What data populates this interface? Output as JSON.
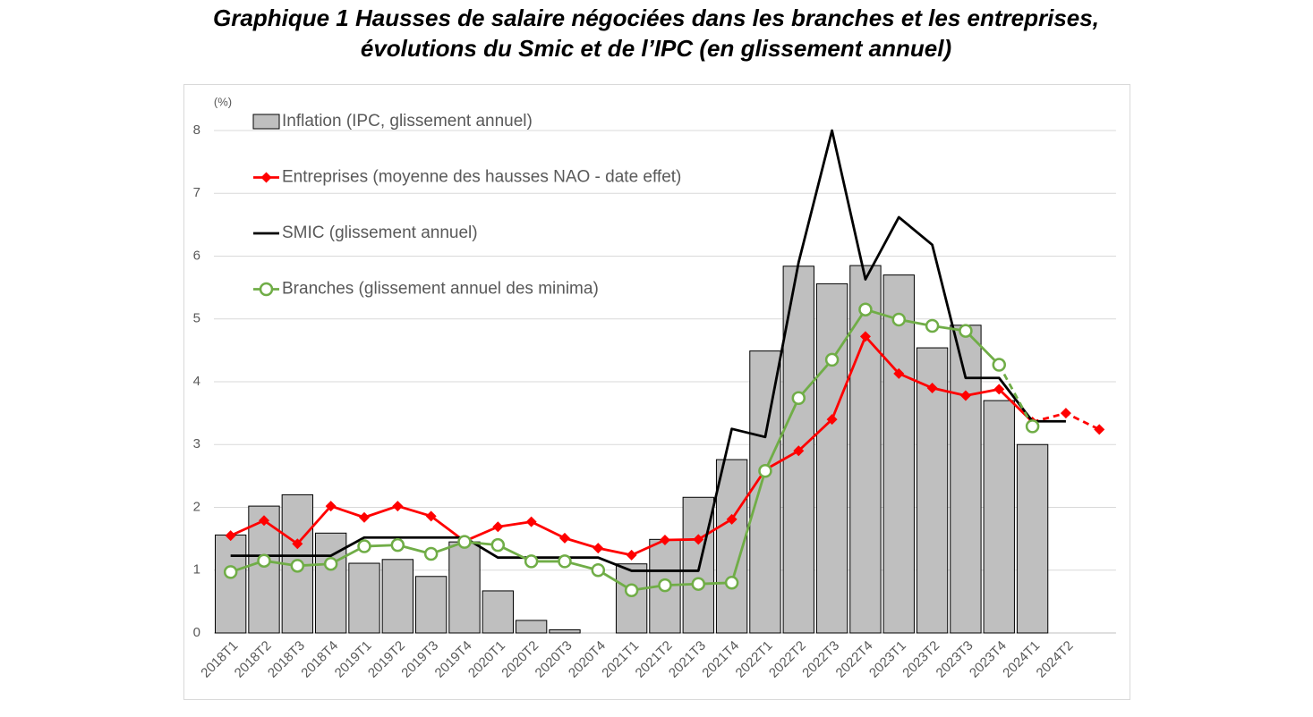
{
  "chart_data": {
    "type": "bar",
    "title": "Graphique 1 Hausses de salaire négociées dans les branches et les entreprises,",
    "subtitle": "évolutions du Smic et de l’IPC (en glissement annuel)",
    "y_label": "(%)",
    "categories": [
      "2018T1",
      "2018T2",
      "2018T3",
      "2018T4",
      "2019T1",
      "2019T2",
      "2019T3",
      "2019T4",
      "2020T1",
      "2020T2",
      "2020T3",
      "2020T4",
      "2021T1",
      "2021T2",
      "2021T3",
      "2021T4",
      "2022T1",
      "2022T2",
      "2022T3",
      "2022T4",
      "2023T1",
      "2023T2",
      "2023T3",
      "2023T4",
      "2024T1",
      "2024T2",
      null
    ],
    "series": [
      {
        "name": "Inflation (IPC, glissement annuel)",
        "type": "bar",
        "color": "#bfbfbf",
        "values": [
          1.56,
          2.02,
          2.2,
          1.59,
          1.11,
          1.17,
          0.9,
          1.45,
          0.67,
          0.2,
          0.05,
          0,
          1.1,
          1.49,
          2.16,
          2.76,
          4.49,
          5.84,
          5.56,
          5.85,
          5.7,
          4.54,
          4.9,
          3.7,
          3.0,
          null,
          null
        ]
      },
      {
        "name": "Entreprises (moyenne des hausses NAO - date effet)",
        "type": "line",
        "color": "#ff0000",
        "marker": "diamond",
        "dash_from": 24,
        "values": [
          1.55,
          1.79,
          1.42,
          2.02,
          1.84,
          2.02,
          1.86,
          1.46,
          1.69,
          1.77,
          1.51,
          1.35,
          1.24,
          1.48,
          1.49,
          1.81,
          2.6,
          2.9,
          3.4,
          4.72,
          4.13,
          3.9,
          3.78,
          3.88,
          3.36,
          3.5,
          3.24
        ]
      },
      {
        "name": "SMIC (glissement annuel)",
        "type": "line",
        "color": "#000000",
        "marker": "none",
        "values": [
          1.23,
          1.23,
          1.23,
          1.23,
          1.52,
          1.52,
          1.52,
          1.52,
          1.2,
          1.2,
          1.2,
          1.2,
          0.99,
          0.99,
          0.99,
          3.25,
          3.12,
          5.9,
          8.0,
          5.63,
          6.62,
          6.18,
          4.06,
          4.06,
          3.37,
          3.37,
          null
        ]
      },
      {
        "name": "Branches (glissement annuel des minima)",
        "type": "line",
        "color": "#70ad47",
        "marker": "circle",
        "dash_from": 23,
        "values": [
          0.97,
          1.15,
          1.07,
          1.1,
          1.38,
          1.4,
          1.26,
          1.45,
          1.4,
          1.14,
          1.14,
          1.0,
          0.68,
          0.76,
          0.78,
          0.8,
          2.58,
          3.74,
          4.35,
          5.15,
          4.99,
          4.89,
          4.81,
          4.27,
          3.29,
          null,
          null
        ]
      }
    ],
    "ylim": [
      0,
      8
    ],
    "yticks": [
      0,
      1,
      2,
      3,
      4,
      5,
      6,
      7,
      8
    ],
    "grid": true,
    "legend": "top-left"
  }
}
